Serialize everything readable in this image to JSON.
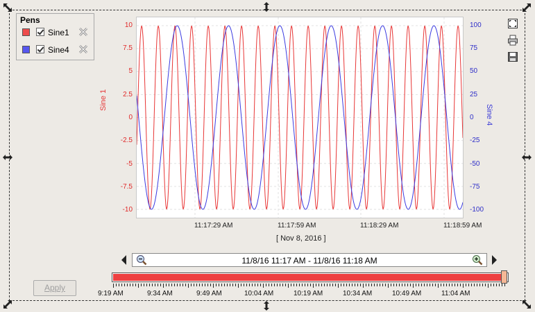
{
  "pens": {
    "title": "Pens",
    "items": [
      {
        "name": "Sine1",
        "color": "#ee4c4c",
        "checked": true
      },
      {
        "name": "Sine4",
        "color": "#5757ef",
        "checked": true
      }
    ]
  },
  "chart_data": {
    "type": "line",
    "x": [
      "11:17:29 AM",
      "11:17:59 AM",
      "11:18:29 AM",
      "11:18:59 AM"
    ],
    "x_date_label": "[ Nov 8, 2016 ]",
    "grid": true,
    "series": [
      {
        "name": "Sine 1",
        "axis": "left",
        "color": "#e83535",
        "ylabel": "Sine 1",
        "ylim": [
          -10,
          10
        ],
        "yticks": [
          "10",
          "7.5",
          "5",
          "2.5",
          "0",
          "-2.5",
          "-5",
          "-7.5",
          "-10"
        ],
        "period_seconds": 6,
        "amplitude": 10
      },
      {
        "name": "Sine 4",
        "axis": "right",
        "color": "#3a3ae0",
        "ylabel": "Sine 4",
        "ylim": [
          -100,
          100
        ],
        "yticks": [
          "100",
          "75",
          "50",
          "25",
          "0",
          "-25",
          "-50",
          "-75",
          "-100"
        ],
        "period_seconds": 18.5,
        "amplitude": 100
      }
    ]
  },
  "range": {
    "text": "11/8/16 11:17 AM - 11/8/16 11:18 AM",
    "fill_fraction": 0.985
  },
  "timeline": {
    "ticks": [
      "9:19 AM",
      "9:34 AM",
      "9:49 AM",
      "10:04 AM",
      "10:19 AM",
      "10:34 AM",
      "10:49 AM",
      "11:04 AM"
    ]
  },
  "apply_label": "Apply"
}
